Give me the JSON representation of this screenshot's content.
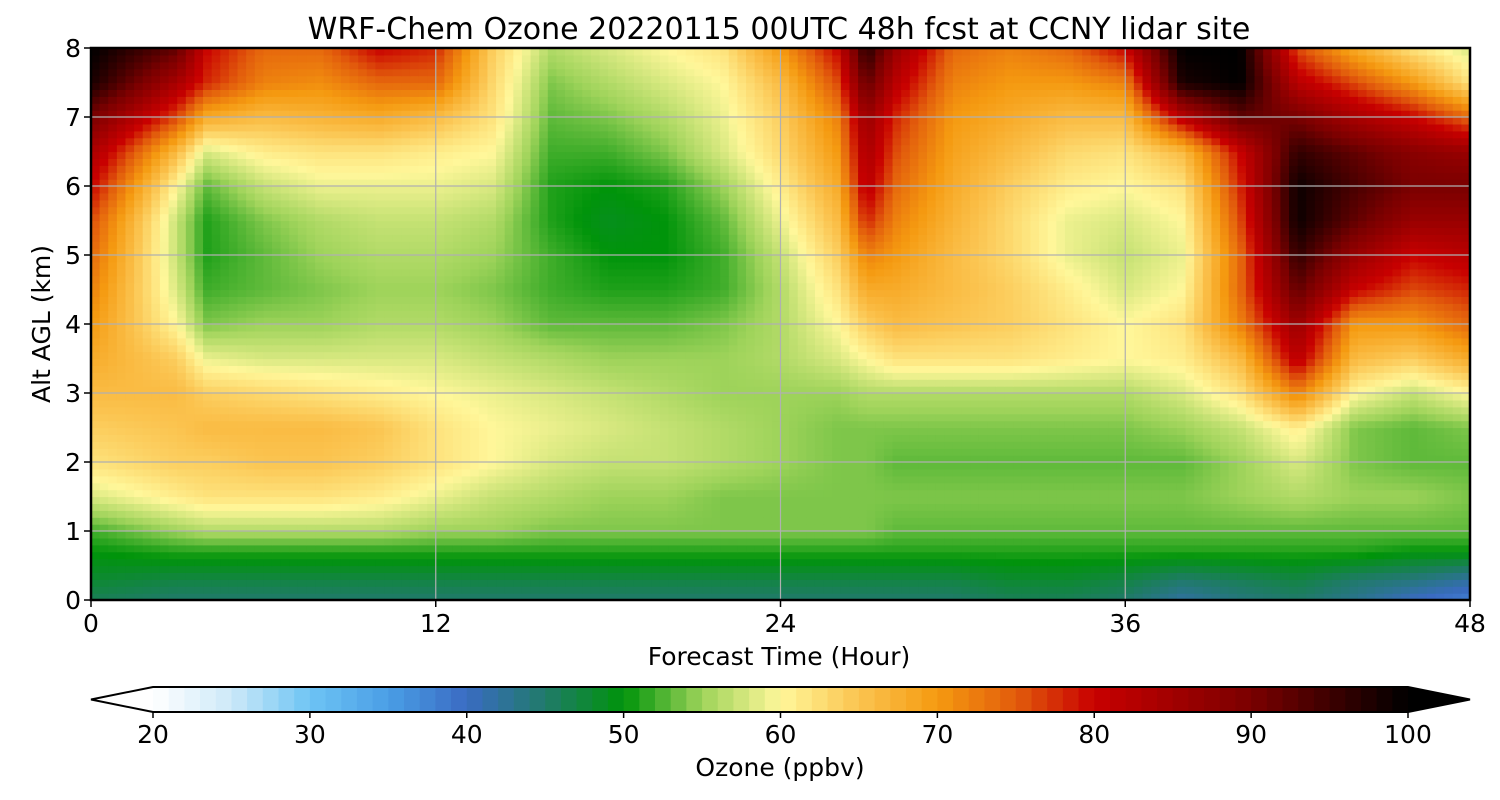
{
  "chart_data": {
    "type": "heatmap",
    "title": "WRF-Chem Ozone  20220115 00UTC 48h fcst at CCNY lidar site",
    "xlabel": "Forecast Time (Hour)",
    "ylabel": "Alt AGL (km)",
    "xlim": [
      0,
      48
    ],
    "ylim": [
      0,
      8
    ],
    "xticks": [
      0,
      12,
      24,
      36,
      48
    ],
    "yticks": [
      0,
      1,
      2,
      3,
      4,
      5,
      6,
      7,
      8
    ],
    "grid": true,
    "colorbar": {
      "label": "Ozone  (ppbv)",
      "min": 20,
      "max": 100,
      "ticks": [
        20,
        30,
        40,
        50,
        60,
        70,
        80,
        90,
        100
      ],
      "extend": "both",
      "orientation": "horizontal",
      "stops": [
        {
          "v": 20,
          "c": "#ffffff"
        },
        {
          "v": 25,
          "c": "#cde9f8"
        },
        {
          "v": 30,
          "c": "#6dc4f4"
        },
        {
          "v": 35,
          "c": "#4a9ee6"
        },
        {
          "v": 40,
          "c": "#3a6bc2"
        },
        {
          "v": 45,
          "c": "#207a6a"
        },
        {
          "v": 50,
          "c": "#00940a"
        },
        {
          "v": 55,
          "c": "#9ed35a"
        },
        {
          "v": 60,
          "c": "#fff79a"
        },
        {
          "v": 65,
          "c": "#fbc450"
        },
        {
          "v": 70,
          "c": "#f59a10"
        },
        {
          "v": 75,
          "c": "#e25c0c"
        },
        {
          "v": 80,
          "c": "#c80000"
        },
        {
          "v": 90,
          "c": "#7a0000"
        },
        {
          "v": 100,
          "c": "#000000"
        }
      ]
    },
    "x": [
      0,
      3,
      4,
      6,
      8,
      10,
      12,
      14,
      16,
      18,
      20,
      22,
      24,
      26,
      27,
      28,
      30,
      32,
      34,
      36,
      38,
      40,
      42,
      44,
      46,
      48
    ],
    "y": [
      0,
      0.3,
      0.7,
      1,
      1.5,
      2,
      2.5,
      3,
      3.5,
      4,
      4.5,
      5,
      5.5,
      6,
      6.5,
      7,
      7.5,
      8
    ],
    "z": [
      [
        46,
        45,
        45,
        45,
        45,
        45,
        45,
        45,
        45,
        45,
        45,
        45,
        45,
        45,
        45,
        45,
        45,
        46,
        46,
        45,
        42,
        44,
        45,
        43,
        40,
        38
      ],
      [
        48,
        47,
        47,
        47,
        47,
        47,
        47,
        47,
        47,
        47,
        47,
        47,
        47,
        47,
        47,
        47,
        47,
        48,
        48,
        47,
        45,
        46,
        47,
        45,
        44,
        42
      ],
      [
        50,
        51,
        51,
        51,
        51,
        51,
        51,
        51,
        51,
        51,
        51,
        51,
        51,
        51,
        51,
        51,
        51,
        51,
        51,
        51,
        51,
        51,
        51,
        51,
        50,
        50
      ],
      [
        52,
        55,
        56,
        56,
        56,
        56,
        55,
        55,
        54,
        54,
        54,
        54,
        54,
        54,
        54,
        53,
        53,
        53,
        53,
        53,
        53,
        53,
        53,
        53,
        53,
        53
      ],
      [
        58,
        61,
        62,
        62,
        62,
        61,
        59,
        57,
        56,
        55,
        55,
        54,
        54,
        54,
        54,
        54,
        54,
        54,
        54,
        54,
        54,
        55,
        56,
        55,
        55,
        54
      ],
      [
        62,
        64,
        64,
        65,
        65,
        64,
        62,
        60,
        58,
        57,
        57,
        56,
        55,
        54,
        54,
        53,
        53,
        53,
        53,
        53,
        53,
        55,
        58,
        54,
        53,
        53
      ],
      [
        64,
        65,
        66,
        66,
        66,
        65,
        62,
        60,
        59,
        58,
        57,
        56,
        55,
        54,
        54,
        54,
        54,
        54,
        54,
        54,
        55,
        57,
        61,
        54,
        53,
        54
      ],
      [
        66,
        66,
        64,
        63,
        62,
        61,
        60,
        59,
        58,
        57,
        56,
        55,
        55,
        55,
        56,
        56,
        56,
        56,
        56,
        56,
        58,
        62,
        72,
        60,
        57,
        60
      ],
      [
        68,
        64,
        59,
        58,
        58,
        58,
        58,
        57,
        56,
        55,
        55,
        55,
        56,
        58,
        60,
        62,
        62,
        62,
        61,
        60,
        61,
        66,
        82,
        66,
        64,
        68
      ],
      [
        70,
        60,
        54,
        55,
        55,
        56,
        56,
        55,
        53,
        53,
        53,
        54,
        56,
        60,
        64,
        66,
        65,
        64,
        62,
        60,
        62,
        72,
        86,
        70,
        70,
        74
      ],
      [
        72,
        58,
        52,
        53,
        54,
        55,
        55,
        54,
        52,
        51,
        51,
        52,
        56,
        62,
        68,
        68,
        66,
        64,
        61,
        58,
        60,
        74,
        92,
        80,
        76,
        78
      ],
      [
        74,
        57,
        51,
        53,
        55,
        56,
        56,
        55,
        52,
        50,
        50,
        52,
        57,
        64,
        72,
        70,
        66,
        63,
        59,
        57,
        59,
        74,
        96,
        86,
        80,
        82
      ],
      [
        76,
        57,
        51,
        54,
        56,
        57,
        57,
        56,
        51,
        49,
        50,
        53,
        59,
        66,
        78,
        72,
        67,
        63,
        59,
        58,
        60,
        76,
        99,
        92,
        86,
        86
      ],
      [
        80,
        60,
        53,
        57,
        59,
        59,
        59,
        58,
        51,
        50,
        51,
        55,
        61,
        68,
        82,
        74,
        68,
        64,
        61,
        60,
        62,
        78,
        99,
        94,
        90,
        90
      ],
      [
        84,
        66,
        58,
        61,
        62,
        62,
        61,
        60,
        52,
        52,
        54,
        58,
        63,
        70,
        84,
        76,
        69,
        66,
        63,
        62,
        66,
        80,
        96,
        92,
        88,
        86
      ],
      [
        90,
        76,
        68,
        66,
        67,
        68,
        66,
        62,
        53,
        54,
        56,
        59,
        64,
        72,
        86,
        78,
        70,
        68,
        66,
        66,
        82,
        92,
        90,
        84,
        80,
        74
      ],
      [
        98,
        84,
        78,
        72,
        71,
        74,
        74,
        63,
        54,
        56,
        58,
        60,
        66,
        76,
        92,
        82,
        72,
        70,
        70,
        72,
        98,
        100,
        82,
        76,
        70,
        62
      ],
      [
        100,
        92,
        80,
        74,
        74,
        80,
        78,
        64,
        56,
        58,
        60,
        62,
        70,
        80,
        97,
        86,
        74,
        72,
        74,
        80,
        100,
        100,
        76,
        68,
        62,
        58
      ]
    ]
  }
}
